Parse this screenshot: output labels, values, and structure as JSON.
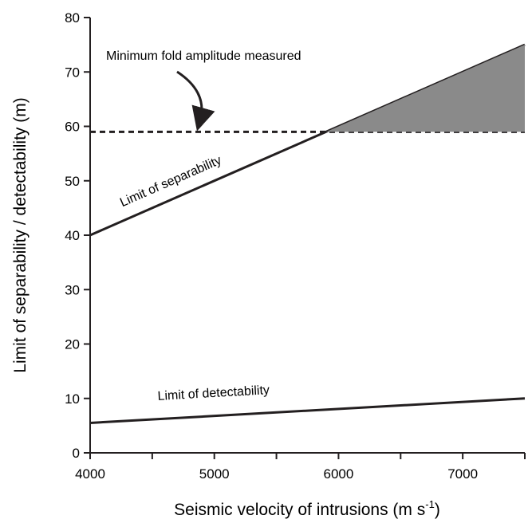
{
  "chart_data": {
    "type": "line",
    "xlabel": {
      "text": "Seismic velocity of intrusions (m s",
      "sup": "-1",
      "end": ")"
    },
    "ylabel": "Limit of separability / detectability (m)",
    "x": [
      4000,
      7500
    ],
    "series": [
      {
        "name": "Limit of separability",
        "color": "#231f20",
        "values": [
          40,
          75
        ]
      },
      {
        "name": "Limit of detectability",
        "color": "#231f20",
        "values": [
          5.5,
          10
        ]
      },
      {
        "name": "Minimum fold amplitude measured",
        "color": "#231f20",
        "values": [
          59,
          59
        ],
        "dashed": true
      }
    ],
    "shade_color": "#8a8a8a",
    "xlim": [
      4000,
      7500
    ],
    "xticks": [
      4000,
      5000,
      6000,
      7000
    ],
    "xminor_ticks": [
      4500,
      5500,
      6500,
      7500
    ],
    "ylim": [
      0,
      80
    ],
    "yticks": [
      0,
      10,
      20,
      30,
      40,
      50,
      60,
      70,
      80
    ]
  }
}
